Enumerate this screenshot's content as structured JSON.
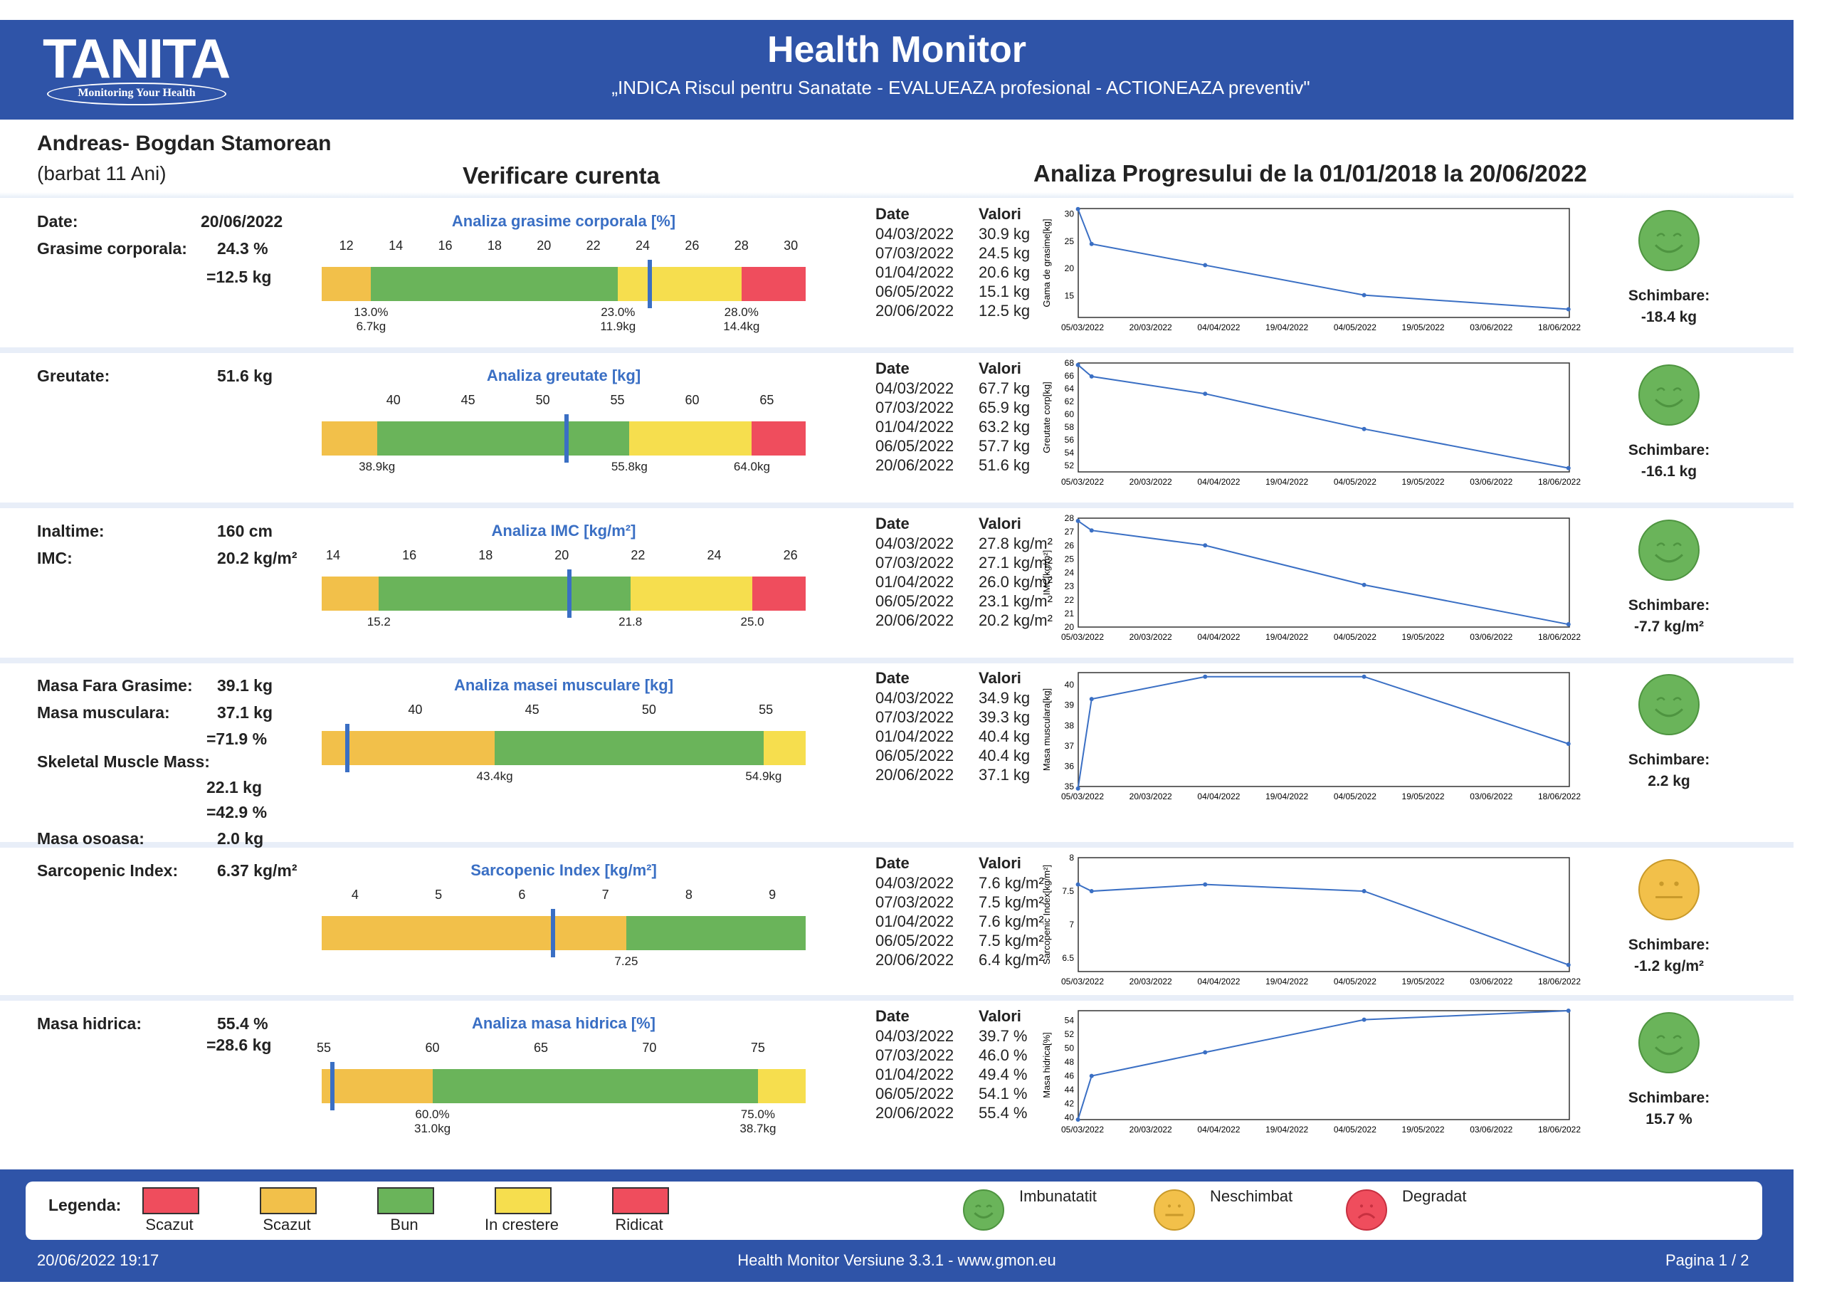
{
  "header": {
    "logo": "TANITA",
    "logo_tagline": "Monitoring Your Health",
    "title": "Health Monitor",
    "subtitle": "„INDICA Riscul pentru Sanatate - EVALUEAZA profesional - ACTIONEAZA preventiv\""
  },
  "patient": {
    "name": "Andreas- Bogdan Stamorean",
    "info": "(barbat 11 Ani)"
  },
  "sections_titles": {
    "current": "Verificare curenta",
    "progress": "Analiza Progresului de la 01/01/2018 la 20/06/2022"
  },
  "table_headers": {
    "date": "Date",
    "values": "Valori"
  },
  "change_label": "Schimbare:",
  "x_dates": [
    "05/03/2022",
    "20/03/2022",
    "04/04/2022",
    "19/04/2022",
    "04/05/2022",
    "19/05/2022",
    "03/06/2022",
    "18/06/2022"
  ],
  "rows": [
    {
      "labels": [
        {
          "text": "Date:",
          "value": "20/06/2022"
        },
        {
          "text": "Grasime corporala:",
          "value": "24.3 %"
        },
        {
          "text": "",
          "value": "=12.5 kg"
        }
      ],
      "gauge": {
        "title": "Analiza grasime corporala [%]",
        "ticks": [
          "12",
          "14",
          "16",
          "18",
          "20",
          "22",
          "24",
          "26",
          "28",
          "30"
        ],
        "min": 11,
        "max": 30.6,
        "marker": 24.3,
        "segments": [
          {
            "from": 11,
            "to": 13,
            "color": "#f2c04a"
          },
          {
            "from": 13,
            "to": 23,
            "color": "#6ab45a"
          },
          {
            "from": 23,
            "to": 28,
            "color": "#f6de4e"
          },
          {
            "from": 28,
            "to": 30.6,
            "color": "#ef4d5d"
          }
        ],
        "bottom_labels": [
          {
            "at": 13,
            "lines": [
              "13.0%",
              "6.7kg"
            ]
          },
          {
            "at": 23,
            "lines": [
              "23.0%",
              "11.9kg"
            ]
          },
          {
            "at": 28,
            "lines": [
              "28.0%",
              "14.4kg"
            ]
          }
        ]
      },
      "table": [
        [
          "04/03/2022",
          "30.9 kg"
        ],
        [
          "07/03/2022",
          "24.5 kg"
        ],
        [
          "01/04/2022",
          "20.6 kg"
        ],
        [
          "06/05/2022",
          "15.1 kg"
        ],
        [
          "20/06/2022",
          "12.5 kg"
        ]
      ],
      "chart": {
        "ylabel": "Gama de grasime[kg]",
        "yticks": [
          "30",
          "25",
          "20",
          "15"
        ],
        "ymin": 11,
        "ymax": 31,
        "points": [
          [
            "2022-03-04",
            30.9
          ],
          [
            "2022-03-07",
            24.5
          ],
          [
            "2022-04-01",
            20.6
          ],
          [
            "2022-05-06",
            15.1
          ],
          [
            "2022-06-20",
            12.5
          ]
        ]
      },
      "change": {
        "value": "-18.4 kg",
        "face": "happy"
      }
    },
    {
      "labels": [
        {
          "text": "Greutate:",
          "value": "51.6 kg"
        }
      ],
      "gauge": {
        "title": "Analiza greutate [kg]",
        "ticks": [
          "40",
          "45",
          "50",
          "55",
          "60",
          "65"
        ],
        "min": 35.2,
        "max": 67.6,
        "marker": 51.6,
        "segments": [
          {
            "from": 35.2,
            "to": 38.9,
            "color": "#f2c04a"
          },
          {
            "from": 38.9,
            "to": 55.8,
            "color": "#6ab45a"
          },
          {
            "from": 55.8,
            "to": 64.0,
            "color": "#f6de4e"
          },
          {
            "from": 64.0,
            "to": 67.6,
            "color": "#ef4d5d"
          }
        ],
        "bottom_labels": [
          {
            "at": 38.9,
            "lines": [
              "38.9kg"
            ]
          },
          {
            "at": 55.8,
            "lines": [
              "55.8kg"
            ]
          },
          {
            "at": 64.0,
            "lines": [
              "64.0kg"
            ]
          }
        ]
      },
      "table": [
        [
          "04/03/2022",
          "67.7 kg"
        ],
        [
          "07/03/2022",
          "65.9 kg"
        ],
        [
          "01/04/2022",
          "63.2 kg"
        ],
        [
          "06/05/2022",
          "57.7 kg"
        ],
        [
          "20/06/2022",
          "51.6 kg"
        ]
      ],
      "chart": {
        "ylabel": "Greutate corp[kg]",
        "yticks": [
          "68",
          "66",
          "64",
          "62",
          "60",
          "58",
          "56",
          "54",
          "52"
        ],
        "ymin": 51,
        "ymax": 68,
        "points": [
          [
            "2022-03-04",
            67.7
          ],
          [
            "2022-03-07",
            65.9
          ],
          [
            "2022-04-01",
            63.2
          ],
          [
            "2022-05-06",
            57.7
          ],
          [
            "2022-06-20",
            51.6
          ]
        ]
      },
      "change": {
        "value": "-16.1 kg",
        "face": "happy"
      }
    },
    {
      "labels": [
        {
          "text": "Inaltime:",
          "value": "160 cm"
        },
        {
          "text": "IMC:",
          "value": "20.2 kg/m²"
        }
      ],
      "gauge": {
        "title": "Analiza IMC [kg/m²]",
        "ticks": [
          "14",
          "16",
          "18",
          "20",
          "22",
          "24",
          "26"
        ],
        "min": 13.7,
        "max": 26.4,
        "marker": 20.2,
        "segments": [
          {
            "from": 13.7,
            "to": 15.2,
            "color": "#f2c04a"
          },
          {
            "from": 15.2,
            "to": 21.8,
            "color": "#6ab45a"
          },
          {
            "from": 21.8,
            "to": 25.0,
            "color": "#f6de4e"
          },
          {
            "from": 25.0,
            "to": 26.4,
            "color": "#ef4d5d"
          }
        ],
        "bottom_labels": [
          {
            "at": 15.2,
            "lines": [
              "15.2"
            ]
          },
          {
            "at": 21.8,
            "lines": [
              "21.8"
            ]
          },
          {
            "at": 25.0,
            "lines": [
              "25.0"
            ]
          }
        ]
      },
      "table": [
        [
          "04/03/2022",
          "27.8 kg/m²"
        ],
        [
          "07/03/2022",
          "27.1 kg/m²"
        ],
        [
          "01/04/2022",
          "26.0 kg/m²"
        ],
        [
          "06/05/2022",
          "23.1 kg/m²"
        ],
        [
          "20/06/2022",
          "20.2 kg/m²"
        ]
      ],
      "chart": {
        "ylabel": "IMC[kg/m²]",
        "yticks": [
          "28",
          "27",
          "26",
          "25",
          "24",
          "23",
          "22",
          "21",
          "20"
        ],
        "ymin": 20,
        "ymax": 28,
        "points": [
          [
            "2022-03-04",
            27.8
          ],
          [
            "2022-03-07",
            27.1
          ],
          [
            "2022-04-01",
            26.0
          ],
          [
            "2022-05-06",
            23.1
          ],
          [
            "2022-06-20",
            20.2
          ]
        ]
      },
      "change": {
        "value": "-7.7 kg/m²",
        "face": "happy"
      }
    },
    {
      "labels": [
        {
          "text": "Masa Fara Grasime:",
          "value": "39.1 kg"
        },
        {
          "text": "Masa musculara:",
          "value": "37.1 kg"
        },
        {
          "text": "",
          "value": "=71.9 %"
        },
        {
          "text": "Skeletal Muscle Mass:",
          "value": ""
        },
        {
          "text": "",
          "value": "22.1 kg"
        },
        {
          "text": "",
          "value": "=42.9 %"
        },
        {
          "text": "Masa osoasa:",
          "value": "2.0 kg"
        }
      ],
      "gauge": {
        "title": "Analiza masei musculare [kg]",
        "ticks": [
          "40",
          "45",
          "50",
          "55"
        ],
        "min": 36.0,
        "max": 56.7,
        "marker": 37.1,
        "segments": [
          {
            "from": 36.0,
            "to": 43.4,
            "color": "#f2c04a"
          },
          {
            "from": 43.4,
            "to": 54.9,
            "color": "#6ab45a"
          },
          {
            "from": 54.9,
            "to": 56.7,
            "color": "#f6de4e"
          }
        ],
        "bottom_labels": [
          {
            "at": 43.4,
            "lines": [
              "43.4kg"
            ]
          },
          {
            "at": 54.9,
            "lines": [
              "54.9kg"
            ]
          }
        ]
      },
      "table": [
        [
          "04/03/2022",
          "34.9 kg"
        ],
        [
          "07/03/2022",
          "39.3 kg"
        ],
        [
          "01/04/2022",
          "40.4 kg"
        ],
        [
          "06/05/2022",
          "40.4 kg"
        ],
        [
          "20/06/2022",
          "37.1 kg"
        ]
      ],
      "chart": {
        "ylabel": "Masa musculara[kg]",
        "yticks": [
          "40",
          "39",
          "38",
          "37",
          "36",
          "35"
        ],
        "ymin": 35,
        "ymax": 40.6,
        "points": [
          [
            "2022-03-04",
            34.9
          ],
          [
            "2022-03-07",
            39.3
          ],
          [
            "2022-04-01",
            40.4
          ],
          [
            "2022-05-06",
            40.4
          ],
          [
            "2022-06-20",
            37.1
          ]
        ]
      },
      "change": {
        "value": "2.2 kg",
        "face": "happy"
      }
    },
    {
      "labels": [
        {
          "text": "Sarcopenic Index:",
          "value": "6.37 kg/m²"
        }
      ],
      "gauge": {
        "title": "Sarcopenic Index [kg/m²]",
        "ticks": [
          "4",
          "5",
          "6",
          "7",
          "8",
          "9"
        ],
        "min": 3.6,
        "max": 9.4,
        "marker": 6.37,
        "segments": [
          {
            "from": 3.6,
            "to": 7.25,
            "color": "#f2c04a"
          },
          {
            "from": 7.25,
            "to": 9.4,
            "color": "#6ab45a"
          }
        ],
        "bottom_labels": [
          {
            "at": 7.25,
            "lines": [
              "7.25"
            ]
          }
        ]
      },
      "table": [
        [
          "04/03/2022",
          "7.6 kg/m²"
        ],
        [
          "07/03/2022",
          "7.5 kg/m²"
        ],
        [
          "01/04/2022",
          "7.6 kg/m²"
        ],
        [
          "06/05/2022",
          "7.5 kg/m²"
        ],
        [
          "20/06/2022",
          "6.4 kg/m²"
        ]
      ],
      "chart": {
        "ylabel": "Sarcopenic Index[kg/m²]",
        "yticks": [
          "8",
          "7.5",
          "7",
          "6.5"
        ],
        "ymin": 6.3,
        "ymax": 8,
        "points": [
          [
            "2022-03-04",
            7.6
          ],
          [
            "2022-03-07",
            7.5
          ],
          [
            "2022-04-01",
            7.6
          ],
          [
            "2022-05-06",
            7.5
          ],
          [
            "2022-06-20",
            6.4
          ]
        ]
      },
      "change": {
        "value": "-1.2 kg/m²",
        "face": "neutral"
      }
    },
    {
      "labels": [
        {
          "text": "Masa hidrica:",
          "value": "55.4 %"
        },
        {
          "text": "",
          "value": "=28.6 kg"
        }
      ],
      "gauge": {
        "title": "Analiza masa hidrica [%]",
        "ticks": [
          "55",
          "60",
          "65",
          "70",
          "75"
        ],
        "min": 54.9,
        "max": 77.2,
        "marker": 55.4,
        "segments": [
          {
            "from": 54.9,
            "to": 60.0,
            "color": "#f2c04a"
          },
          {
            "from": 60.0,
            "to": 75.0,
            "color": "#6ab45a"
          },
          {
            "from": 75.0,
            "to": 77.2,
            "color": "#f6de4e"
          }
        ],
        "bottom_labels": [
          {
            "at": 60.0,
            "lines": [
              "60.0%",
              "31.0kg"
            ]
          },
          {
            "at": 75.0,
            "lines": [
              "75.0%",
              "38.7kg"
            ]
          }
        ]
      },
      "table": [
        [
          "04/03/2022",
          "39.7 %"
        ],
        [
          "07/03/2022",
          "46.0 %"
        ],
        [
          "01/04/2022",
          "49.4 %"
        ],
        [
          "06/05/2022",
          "54.1 %"
        ],
        [
          "20/06/2022",
          "55.4 %"
        ]
      ],
      "chart": {
        "ylabel": "Masa hidrica[%]",
        "yticks": [
          "54",
          "52",
          "50",
          "48",
          "46",
          "44",
          "42",
          "40"
        ],
        "ymin": 39.7,
        "ymax": 55.4,
        "points": [
          [
            "2022-03-04",
            39.7
          ],
          [
            "2022-03-07",
            46.0
          ],
          [
            "2022-04-01",
            49.4
          ],
          [
            "2022-05-06",
            54.1
          ],
          [
            "2022-06-20",
            55.4
          ]
        ]
      },
      "change": {
        "value": "15.7 %",
        "face": "happy"
      }
    }
  ],
  "legend": {
    "title": "Legenda:",
    "items": [
      {
        "label": "Scazut",
        "color": "#ef4d5d"
      },
      {
        "label": "Scazut",
        "color": "#f2c04a"
      },
      {
        "label": "Bun",
        "color": "#6ab45a"
      },
      {
        "label": "In crestere",
        "color": "#f6de4e"
      },
      {
        "label": "Ridicat",
        "color": "#ef4d5d"
      }
    ],
    "faces": [
      {
        "label": "Imbunatatit",
        "face": "happy"
      },
      {
        "label": "Neschimbat",
        "face": "neutral"
      },
      {
        "label": "Degradat",
        "face": "sad"
      }
    ]
  },
  "footer": {
    "datetime": "20/06/2022 19:17",
    "version": "Health Monitor Versiune 3.3.1 - www.gmon.eu",
    "page": "Pagina 1 / 2"
  }
}
